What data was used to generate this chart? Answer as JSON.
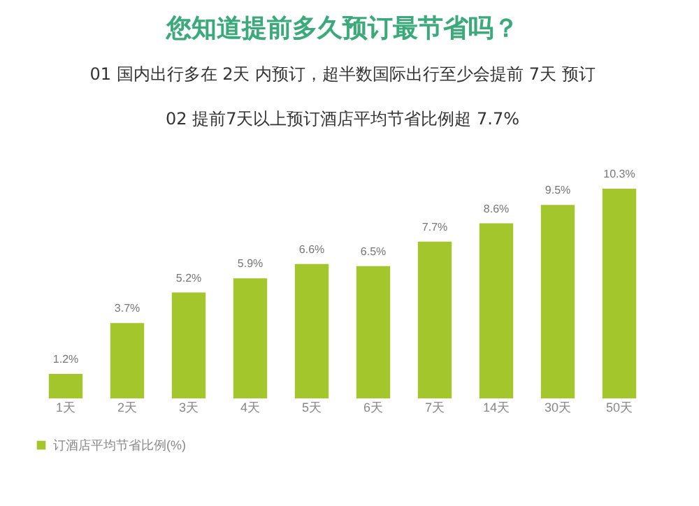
{
  "chart_data": {
    "type": "bar",
    "title": "您知道提前多久预订最节省吗？",
    "annotations": [
      "01 国内出行多在 2天 内预订，超半数国际出行至少会提前 7天 预订",
      "02 提前7天以上预订酒店平均节省比例超 7.7%"
    ],
    "categories": [
      "1天",
      "2天",
      "3天",
      "4天",
      "5天",
      "6天",
      "7天",
      "14天",
      "30天",
      "50天"
    ],
    "series": [
      {
        "name": "订酒店平均节省比例(%)",
        "color": "#a3c62c",
        "values": [
          1.2,
          3.7,
          5.2,
          5.9,
          6.6,
          6.5,
          7.7,
          8.6,
          9.5,
          10.3
        ],
        "value_labels": [
          "1.2%",
          "3.7%",
          "5.2%",
          "5.9%",
          "6.6%",
          "6.5%",
          "7.7%",
          "8.6%",
          "9.5%",
          "10.3%"
        ]
      }
    ],
    "legend": "bottom"
  }
}
